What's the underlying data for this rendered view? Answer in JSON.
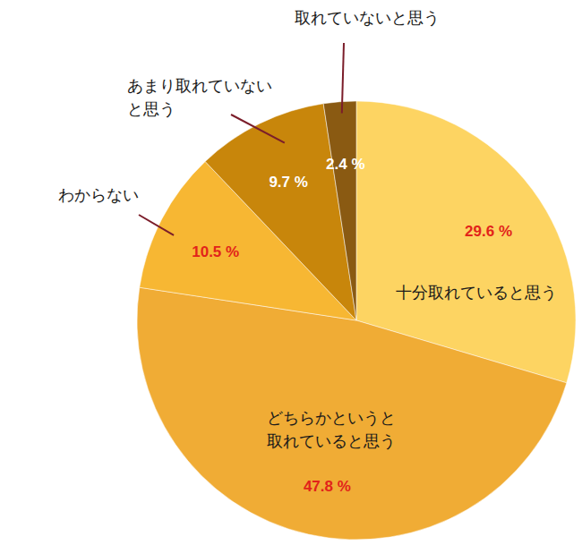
{
  "chart_data": {
    "type": "pie",
    "categories": [
      "十分取れていると思う",
      "どちらかというと\n取れていると思う",
      "わからない",
      "あまり取れていない\nと思う",
      "取れていないと思う"
    ],
    "values": [
      29.6,
      47.8,
      10.5,
      9.7,
      2.4
    ],
    "value_labels": [
      "29.6 %",
      "47.8 %",
      "10.5 %",
      "9.7 %",
      "2.4 %"
    ],
    "colors": [
      "#fdd462",
      "#f0ac35",
      "#f7b733",
      "#c8860b",
      "#8a5a12"
    ],
    "data_labels": true
  }
}
